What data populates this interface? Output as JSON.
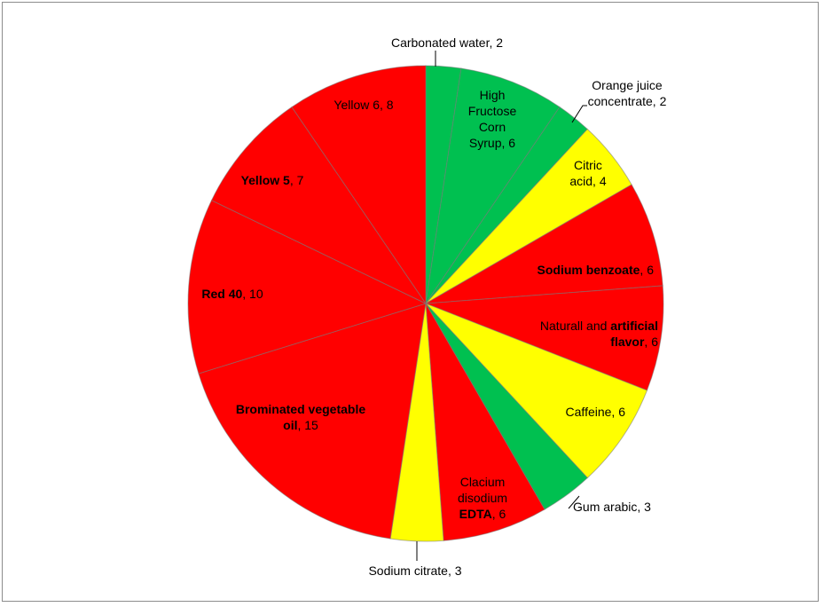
{
  "chart_data": {
    "type": "pie",
    "start_angle_deg": 0,
    "direction": "clockwise",
    "slices": [
      {
        "label_parts": [
          [
            "Carbonated water, 2",
            false
          ]
        ],
        "value": 2,
        "color": "#00c050"
      },
      {
        "label_parts": [
          [
            "High Fructose Corn Syrup, 6",
            false
          ]
        ],
        "value": 6,
        "color": "#00c050"
      },
      {
        "label_parts": [
          [
            "Orange juice concentrate, 2",
            false
          ]
        ],
        "value": 2,
        "color": "#00c050"
      },
      {
        "label_parts": [
          [
            "Citric acid, 4",
            false
          ]
        ],
        "value": 4,
        "color": "#ffff00"
      },
      {
        "label_parts": [
          [
            "Sodium benzoate",
            true
          ],
          [
            ", 6",
            false
          ]
        ],
        "value": 6,
        "color": "#ff0000"
      },
      {
        "label_parts": [
          [
            "Naturall and ",
            false
          ],
          [
            "artificial flavor",
            true
          ],
          [
            ", 6",
            false
          ]
        ],
        "value": 6,
        "color": "#ff0000"
      },
      {
        "label_parts": [
          [
            "Caffeine, 6",
            false
          ]
        ],
        "value": 6,
        "color": "#ffff00"
      },
      {
        "label_parts": [
          [
            "Gum arabic, 3",
            false
          ]
        ],
        "value": 3,
        "color": "#00c050"
      },
      {
        "label_parts": [
          [
            "Clacium disodium ",
            false
          ],
          [
            "EDTA",
            true
          ],
          [
            ", 6",
            false
          ]
        ],
        "value": 6,
        "color": "#ff0000"
      },
      {
        "label_parts": [
          [
            "Sodium citrate, 3",
            false
          ]
        ],
        "value": 3,
        "color": "#ffff00"
      },
      {
        "label_parts": [
          [
            "Brominated vegetable oil",
            true
          ],
          [
            ", 15",
            false
          ]
        ],
        "value": 15,
        "color": "#ff0000"
      },
      {
        "label_parts": [
          [
            "Red 40",
            true
          ],
          [
            ", 10",
            false
          ]
        ],
        "value": 10,
        "color": "#ff0000"
      },
      {
        "label_parts": [
          [
            "Yellow 5",
            true
          ],
          [
            ", 7",
            false
          ]
        ],
        "value": 7,
        "color": "#ff0000"
      },
      {
        "label_parts": [
          [
            "Yellow 6, 8",
            false
          ]
        ],
        "value": 8,
        "color": "#ff0000"
      }
    ]
  }
}
